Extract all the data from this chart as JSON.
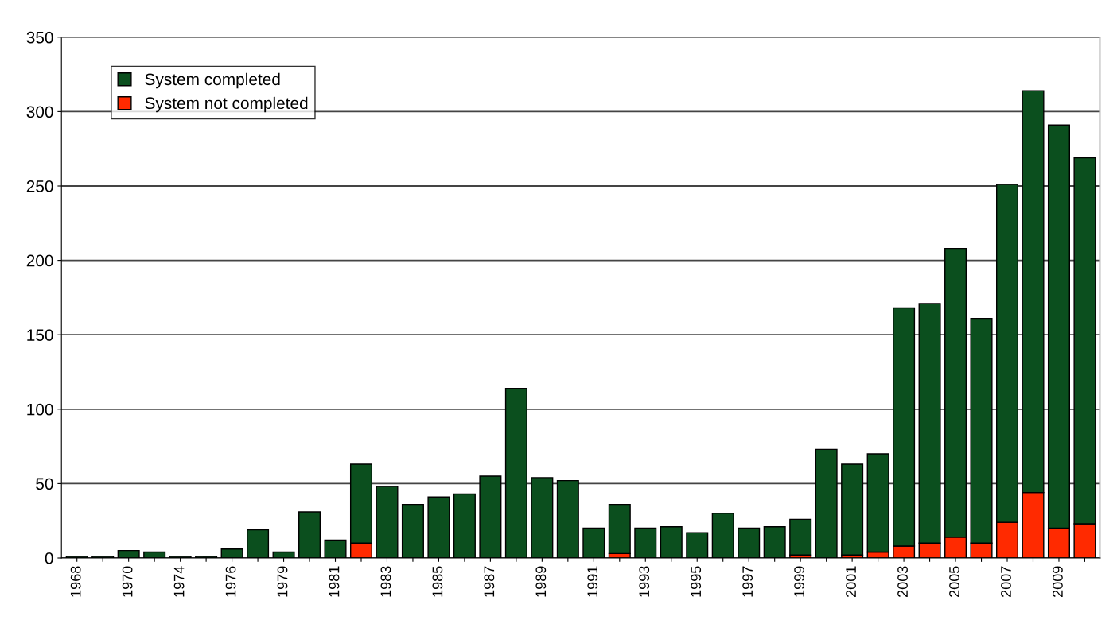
{
  "chart_data": {
    "type": "bar",
    "stacked": true,
    "categories": [
      "1968",
      null,
      "1970",
      null,
      "1974",
      null,
      "1976",
      null,
      "1979",
      null,
      "1981",
      null,
      "1983",
      null,
      "1985",
      null,
      "1987",
      null,
      "1989",
      null,
      "1991",
      null,
      "1993",
      null,
      "1995",
      null,
      "1997",
      null,
      "1999",
      null,
      "2001",
      null,
      "2003",
      null,
      "2005",
      null,
      "2007",
      null,
      "2009",
      null
    ],
    "series": [
      {
        "name": "System not completed",
        "color": "#ff2a00",
        "values": [
          null,
          null,
          null,
          null,
          null,
          null,
          null,
          null,
          null,
          null,
          null,
          10,
          null,
          null,
          null,
          null,
          null,
          null,
          null,
          null,
          null,
          3,
          null,
          null,
          null,
          null,
          null,
          null,
          2,
          null,
          2,
          4,
          8,
          10,
          14,
          10,
          24,
          44,
          20,
          23
        ]
      },
      {
        "name": "System completed",
        "color": "#0b4f1e",
        "values": [
          1,
          1,
          5,
          4,
          1,
          1,
          6,
          19,
          4,
          31,
          12,
          53,
          48,
          36,
          41,
          43,
          55,
          114,
          54,
          52,
          20,
          33,
          20,
          21,
          17,
          30,
          20,
          21,
          24,
          73,
          61,
          66,
          160,
          161,
          194,
          151,
          227,
          270,
          271,
          246
        ]
      }
    ],
    "ylim": [
      0,
      350
    ],
    "yticks": [
      0,
      50,
      100,
      150,
      200,
      250,
      300,
      350
    ],
    "grid": "y",
    "legend": "top left"
  }
}
